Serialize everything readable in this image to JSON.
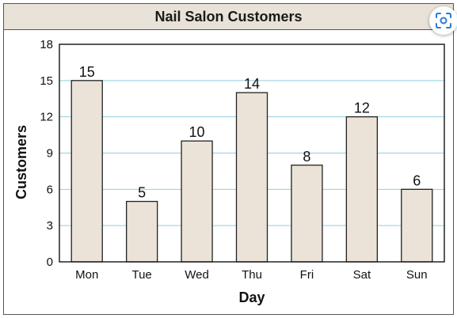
{
  "chart_data": {
    "type": "bar",
    "title": "Nail Salon Customers",
    "xlabel": "Day",
    "ylabel": "Customers",
    "categories": [
      "Mon",
      "Tue",
      "Wed",
      "Thu",
      "Fri",
      "Sat",
      "Sun"
    ],
    "values": [
      15,
      5,
      10,
      14,
      8,
      12,
      6
    ],
    "ylim": [
      0,
      18
    ],
    "yticks": [
      0,
      3,
      6,
      9,
      12,
      15,
      18
    ],
    "grid": true,
    "bar_color": "#ebe3d7",
    "grid_color": "#8fcfe0"
  },
  "scan_icon_name": "scan-icon"
}
